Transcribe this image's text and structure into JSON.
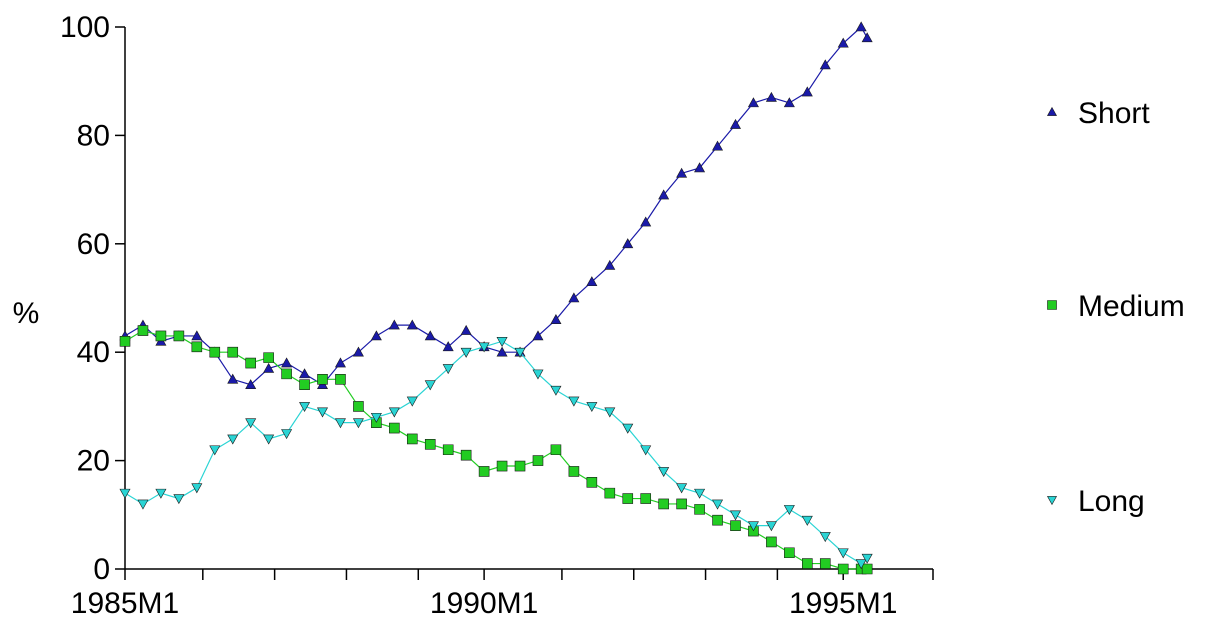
{
  "chart_data": {
    "type": "scatter",
    "title": "",
    "xlabel": "",
    "ylabel": "%",
    "ylim": [
      0,
      100
    ],
    "yticks": [
      "0",
      "20",
      "40",
      "60",
      "80",
      "100"
    ],
    "xlim": [
      "1985M1",
      "1996M4"
    ],
    "xtick_labels": [
      {
        "date": "1985M1",
        "label": "1985M1"
      },
      {
        "date": "1990M1",
        "label": "1990M1"
      },
      {
        "date": "1995M1",
        "label": "1995M1"
      }
    ],
    "xtick_marks": [
      "1985M1",
      "1986M2",
      "1987M2",
      "1988M2",
      "1989M2",
      "1990M1",
      "1991M2",
      "1992M2",
      "1993M2",
      "1994M2",
      "1995M1",
      "1996M4"
    ],
    "grid": false,
    "legend_position": "right",
    "series": [
      {
        "name": "Short",
        "marker": "triangle-up",
        "color": "#1a1aa8",
        "points": [
          [
            "1985M1",
            43
          ],
          [
            "1985M4",
            45
          ],
          [
            "1985M7",
            42
          ],
          [
            "1985M10",
            43
          ],
          [
            "1986M1",
            43
          ],
          [
            "1986M4",
            40
          ],
          [
            "1986M7",
            35
          ],
          [
            "1986M10",
            34
          ],
          [
            "1987M1",
            37
          ],
          [
            "1987M4",
            38
          ],
          [
            "1987M7",
            36
          ],
          [
            "1987M10",
            34
          ],
          [
            "1988M1",
            38
          ],
          [
            "1988M4",
            40
          ],
          [
            "1988M7",
            43
          ],
          [
            "1988M10",
            45
          ],
          [
            "1989M1",
            45
          ],
          [
            "1989M4",
            43
          ],
          [
            "1989M7",
            41
          ],
          [
            "1989M10",
            44
          ],
          [
            "1990M1",
            41
          ],
          [
            "1990M4",
            40
          ],
          [
            "1990M7",
            40
          ],
          [
            "1990M10",
            43
          ],
          [
            "1991M1",
            46
          ],
          [
            "1991M4",
            50
          ],
          [
            "1991M7",
            53
          ],
          [
            "1991M10",
            56
          ],
          [
            "1992M1",
            60
          ],
          [
            "1992M4",
            64
          ],
          [
            "1992M7",
            69
          ],
          [
            "1992M10",
            73
          ],
          [
            "1993M1",
            74
          ],
          [
            "1993M4",
            78
          ],
          [
            "1993M7",
            82
          ],
          [
            "1993M10",
            86
          ],
          [
            "1994M1",
            87
          ],
          [
            "1994M4",
            86
          ],
          [
            "1994M7",
            88
          ],
          [
            "1994M10",
            93
          ],
          [
            "1995M1",
            97
          ],
          [
            "1995M4",
            100
          ],
          [
            "1995M5",
            98
          ]
        ]
      },
      {
        "name": "Medium",
        "marker": "square",
        "color": "#22cc22",
        "points": [
          [
            "1985M1",
            42
          ],
          [
            "1985M4",
            44
          ],
          [
            "1985M7",
            43
          ],
          [
            "1985M10",
            43
          ],
          [
            "1986M1",
            41
          ],
          [
            "1986M4",
            40
          ],
          [
            "1986M7",
            40
          ],
          [
            "1986M10",
            38
          ],
          [
            "1987M1",
            39
          ],
          [
            "1987M4",
            36
          ],
          [
            "1987M7",
            34
          ],
          [
            "1987M10",
            35
          ],
          [
            "1988M1",
            35
          ],
          [
            "1988M4",
            30
          ],
          [
            "1988M7",
            27
          ],
          [
            "1988M10",
            26
          ],
          [
            "1989M1",
            24
          ],
          [
            "1989M4",
            23
          ],
          [
            "1989M7",
            22
          ],
          [
            "1989M10",
            21
          ],
          [
            "1990M1",
            18
          ],
          [
            "1990M4",
            19
          ],
          [
            "1990M7",
            19
          ],
          [
            "1990M10",
            20
          ],
          [
            "1991M1",
            22
          ],
          [
            "1991M4",
            18
          ],
          [
            "1991M7",
            16
          ],
          [
            "1991M10",
            14
          ],
          [
            "1992M1",
            13
          ],
          [
            "1992M4",
            13
          ],
          [
            "1992M7",
            12
          ],
          [
            "1992M10",
            12
          ],
          [
            "1993M1",
            11
          ],
          [
            "1993M4",
            9
          ],
          [
            "1993M7",
            8
          ],
          [
            "1993M10",
            7
          ],
          [
            "1994M1",
            5
          ],
          [
            "1994M4",
            3
          ],
          [
            "1994M7",
            1
          ],
          [
            "1994M10",
            1
          ],
          [
            "1995M1",
            0
          ],
          [
            "1995M4",
            0
          ],
          [
            "1995M5",
            0
          ]
        ]
      },
      {
        "name": "Long",
        "marker": "triangle-down",
        "color": "#2ad4d4",
        "points": [
          [
            "1985M1",
            14
          ],
          [
            "1985M4",
            12
          ],
          [
            "1985M7",
            14
          ],
          [
            "1985M10",
            13
          ],
          [
            "1986M1",
            15
          ],
          [
            "1986M4",
            22
          ],
          [
            "1986M7",
            24
          ],
          [
            "1986M10",
            27
          ],
          [
            "1987M1",
            24
          ],
          [
            "1987M4",
            25
          ],
          [
            "1987M7",
            30
          ],
          [
            "1987M10",
            29
          ],
          [
            "1988M1",
            27
          ],
          [
            "1988M4",
            27
          ],
          [
            "1988M7",
            28
          ],
          [
            "1988M10",
            29
          ],
          [
            "1989M1",
            31
          ],
          [
            "1989M4",
            34
          ],
          [
            "1989M7",
            37
          ],
          [
            "1989M10",
            40
          ],
          [
            "1990M1",
            41
          ],
          [
            "1990M4",
            42
          ],
          [
            "1990M7",
            40
          ],
          [
            "1990M10",
            36
          ],
          [
            "1991M1",
            33
          ],
          [
            "1991M4",
            31
          ],
          [
            "1991M7",
            30
          ],
          [
            "1991M10",
            29
          ],
          [
            "1992M1",
            26
          ],
          [
            "1992M4",
            22
          ],
          [
            "1992M7",
            18
          ],
          [
            "1992M10",
            15
          ],
          [
            "1993M1",
            14
          ],
          [
            "1993M4",
            12
          ],
          [
            "1993M7",
            10
          ],
          [
            "1993M10",
            8
          ],
          [
            "1994M1",
            8
          ],
          [
            "1994M4",
            11
          ],
          [
            "1994M7",
            9
          ],
          [
            "1994M10",
            6
          ],
          [
            "1995M1",
            3
          ],
          [
            "1995M4",
            1
          ],
          [
            "1995M5",
            2
          ]
        ]
      }
    ]
  }
}
